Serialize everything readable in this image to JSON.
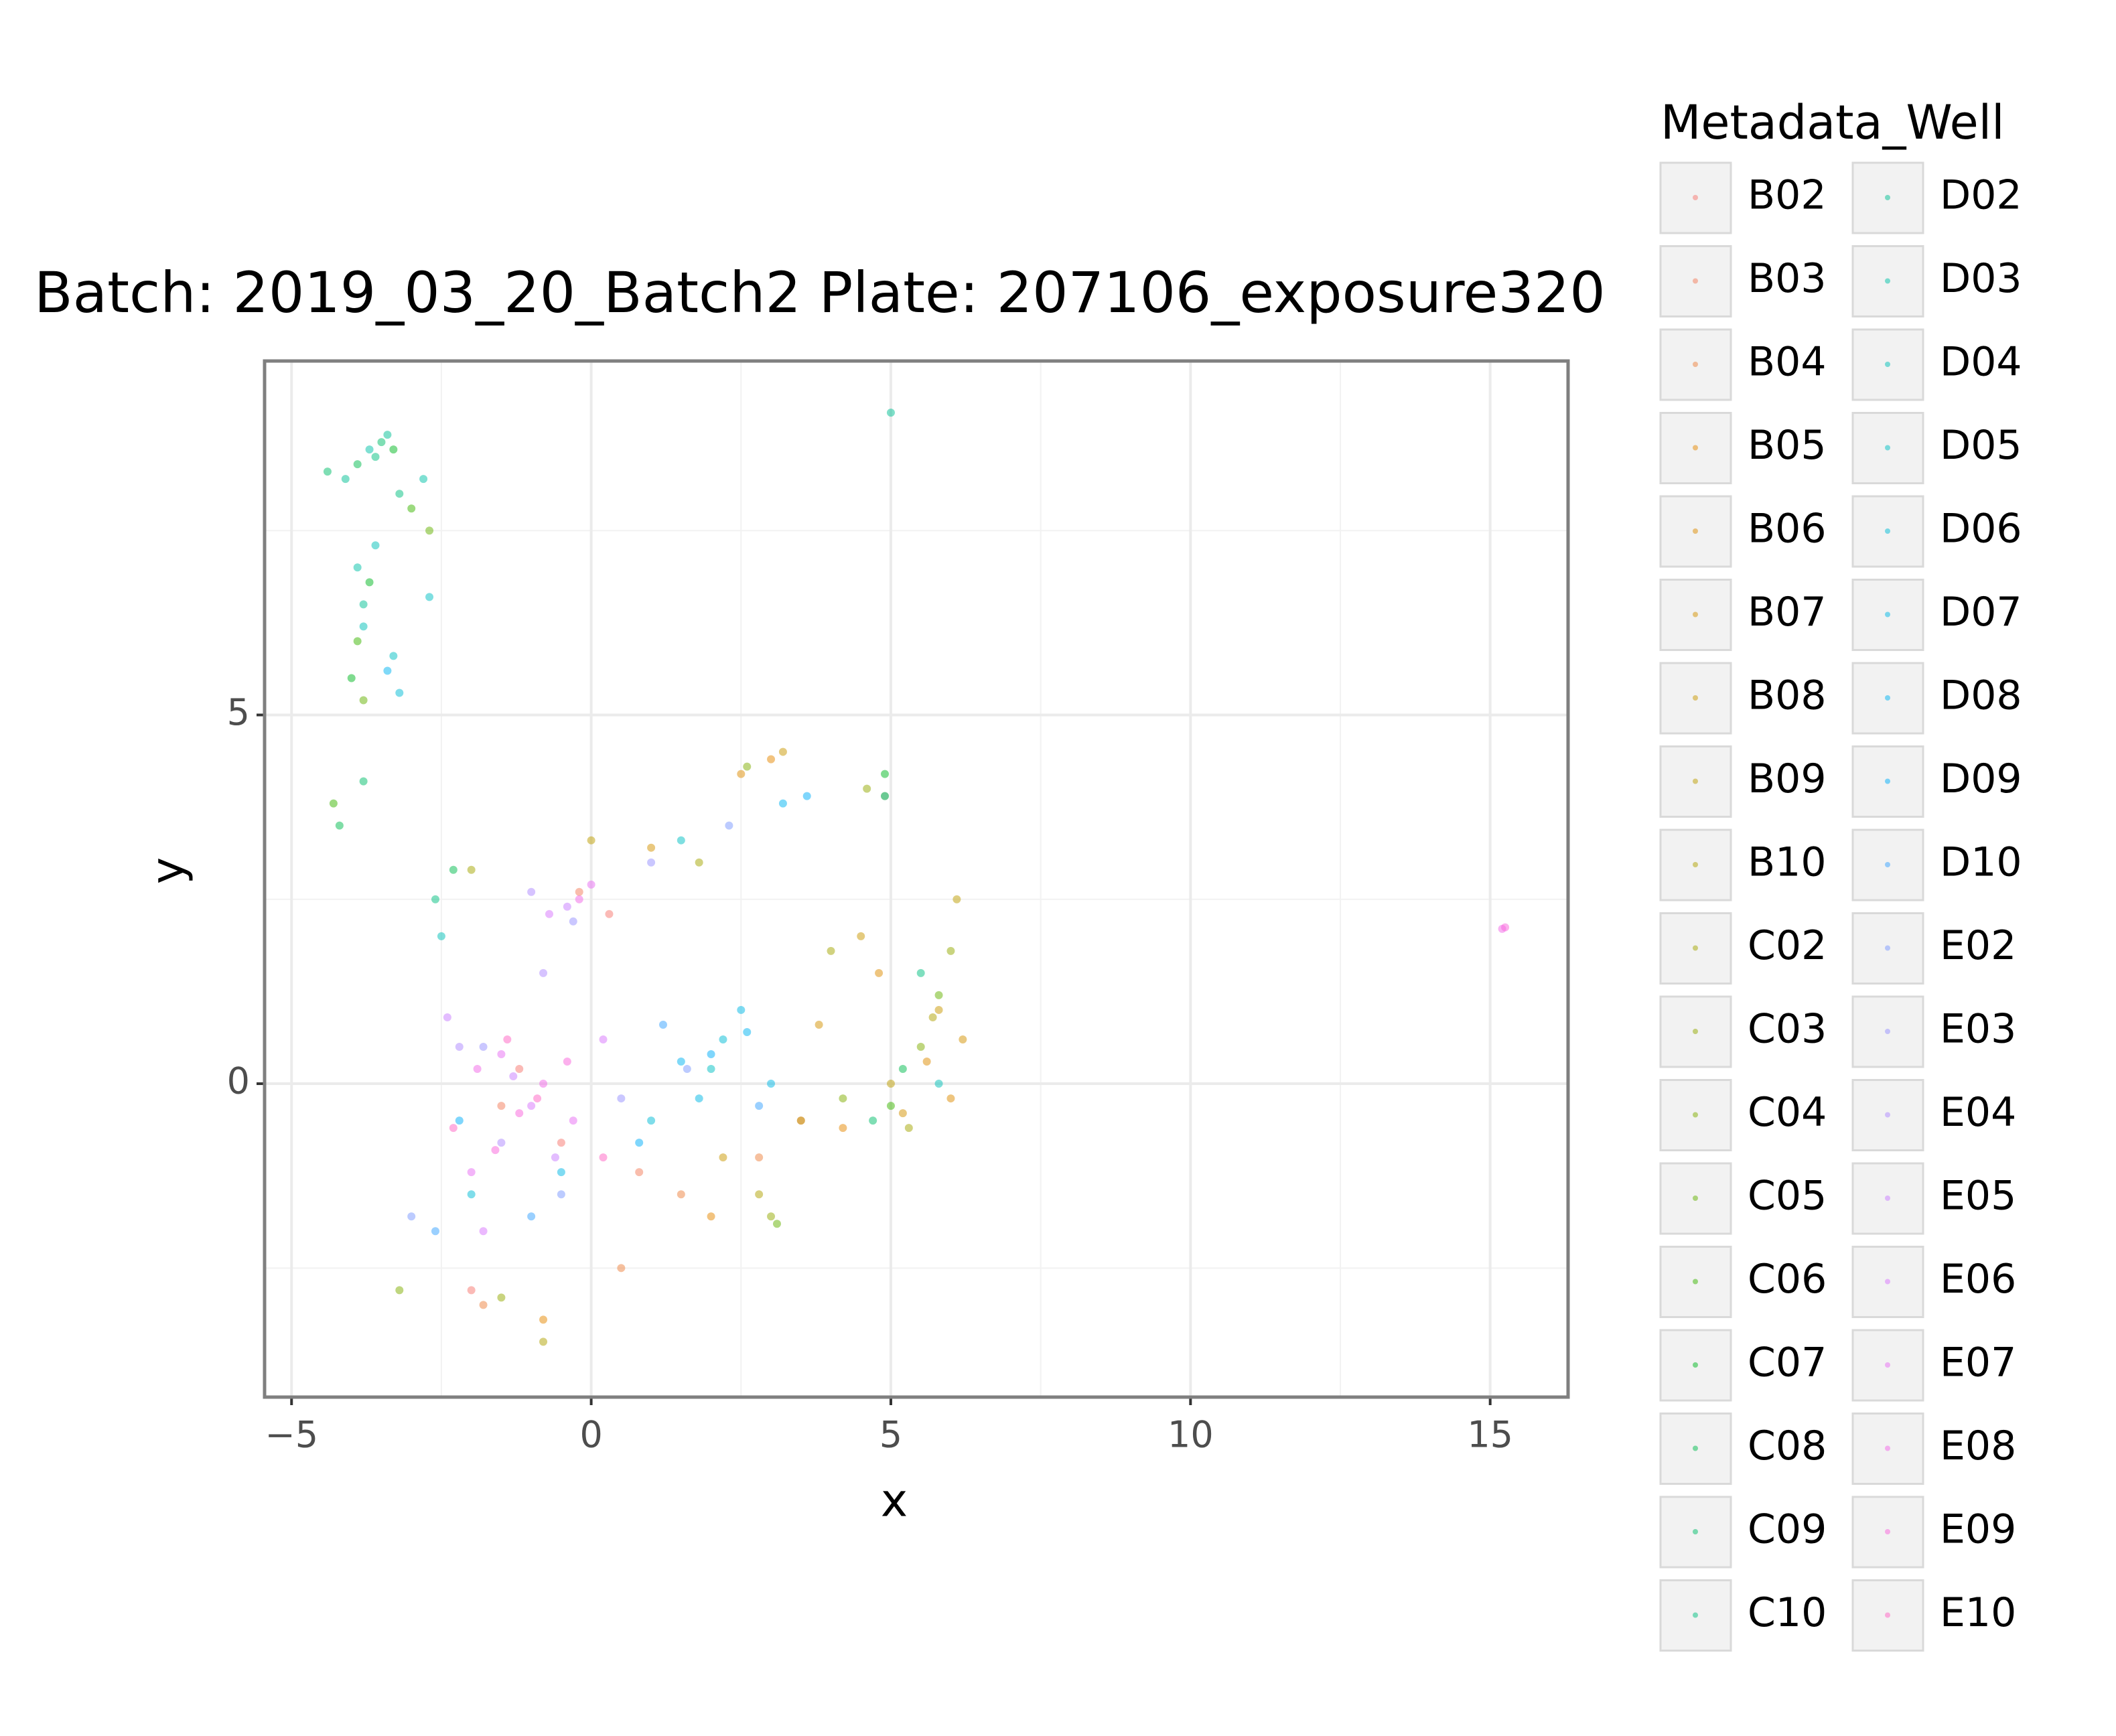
{
  "chart_data": {
    "type": "scatter",
    "title": "Batch: 2019_03_20_Batch2 Plate: 207106_exposure320",
    "x_label": "x",
    "y_label": "y",
    "legend_title": "Metadata_Well",
    "xlim": [
      -5.45,
      16.3
    ],
    "ylim": [
      -4.25,
      9.8
    ],
    "xticks": [
      {
        "value": -5,
        "label": "−5"
      },
      0,
      5,
      10,
      15
    ],
    "yticks": [
      0,
      5
    ],
    "grid": true,
    "legend": "right",
    "series": [
      {
        "name": "B02",
        "color": "#F8766D",
        "x": [
          -1.2,
          -0.5,
          0.3,
          -2.0
        ],
        "values": [
          0.2,
          -0.8,
          2.3,
          -2.8
        ]
      },
      {
        "name": "B03",
        "color": "#F37B59",
        "x": [
          -1.5,
          0.8,
          -0.2,
          3.5
        ],
        "values": [
          -0.3,
          -1.2,
          2.6,
          -0.5
        ]
      },
      {
        "name": "B04",
        "color": "#ED813E",
        "x": [
          0.5,
          -1.8,
          1.5,
          2.8
        ],
        "values": [
          -2.5,
          -3.0,
          -1.5,
          -1.0
        ]
      },
      {
        "name": "B05",
        "color": "#E58700",
        "x": [
          2.0,
          4.2,
          -0.8,
          3.0
        ],
        "values": [
          -1.8,
          -0.6,
          -3.2,
          4.4
        ]
      },
      {
        "name": "B06",
        "color": "#DE8C00",
        "x": [
          5.6,
          4.8,
          2.5,
          6.0
        ],
        "values": [
          0.3,
          1.5,
          4.2,
          -0.2
        ]
      },
      {
        "name": "B07",
        "color": "#D39200",
        "x": [
          5.2,
          3.8,
          6.2,
          1.0
        ],
        "values": [
          -0.4,
          0.8,
          0.6,
          3.2
        ]
      },
      {
        "name": "B08",
        "color": "#C99800",
        "x": [
          4.5,
          5.8,
          3.2,
          2.2
        ],
        "values": [
          2.0,
          1.0,
          4.5,
          -1.0
        ]
      },
      {
        "name": "B09",
        "color": "#BD9D00",
        "x": [
          5.0,
          3.5,
          6.1,
          0.0
        ],
        "values": [
          0.0,
          -0.5,
          2.5,
          3.3
        ]
      },
      {
        "name": "B10",
        "color": "#B0A100",
        "x": [
          4.9,
          5.7,
          2.8,
          -0.8
        ],
        "values": [
          3.9,
          0.9,
          -1.5,
          -3.5
        ]
      },
      {
        "name": "C02",
        "color": "#A3A500",
        "x": [
          5.3,
          4.0,
          1.8,
          -2.0
        ],
        "values": [
          -0.6,
          1.8,
          3.0,
          2.9
        ]
      },
      {
        "name": "C03",
        "color": "#93AA00",
        "x": [
          6.0,
          3.0,
          4.6,
          -1.5
        ],
        "values": [
          1.8,
          -1.8,
          4.0,
          -2.9
        ]
      },
      {
        "name": "C04",
        "color": "#7FAE00",
        "x": [
          5.5,
          2.6,
          4.2,
          -3.2
        ],
        "values": [
          0.5,
          4.3,
          -0.2,
          -2.8
        ]
      },
      {
        "name": "C05",
        "color": "#64B200",
        "x": [
          5.8,
          3.1,
          -3.8,
          -2.7
        ],
        "values": [
          1.2,
          -1.9,
          5.2,
          7.5
        ]
      },
      {
        "name": "C06",
        "color": "#39B600",
        "x": [
          5.0,
          -3.9,
          -3.0,
          -4.3
        ],
        "values": [
          -0.3,
          6.0,
          7.8,
          3.8
        ]
      },
      {
        "name": "C07",
        "color": "#00B81F",
        "x": [
          -3.7,
          -4.0,
          -3.3,
          4.9
        ],
        "values": [
          6.8,
          5.5,
          8.6,
          4.2
        ]
      },
      {
        "name": "C08",
        "color": "#00BB4E",
        "x": [
          -3.9,
          -4.2,
          -2.3,
          5.2
        ],
        "values": [
          8.4,
          3.5,
          2.9,
          0.2
        ]
      },
      {
        "name": "C09",
        "color": "#00BD6A",
        "x": [
          -3.5,
          -4.4,
          -3.8,
          4.7
        ],
        "values": [
          8.7,
          8.3,
          4.1,
          -0.5
        ]
      },
      {
        "name": "C10",
        "color": "#00BF80",
        "x": [
          -3.6,
          -3.2,
          -2.6,
          5.5
        ],
        "values": [
          8.5,
          8.0,
          2.5,
          1.5
        ]
      },
      {
        "name": "D02",
        "color": "#00C094",
        "x": [
          -4.1,
          -3.4,
          5.0,
          -3.8
        ],
        "values": [
          8.2,
          8.8,
          9.1,
          6.5
        ]
      },
      {
        "name": "D03",
        "color": "#00C1A7",
        "x": [
          -3.7,
          -3.9,
          -2.8,
          4.9
        ],
        "values": [
          8.6,
          7.0,
          8.2,
          3.9
        ]
      },
      {
        "name": "D04",
        "color": "#00C0B8",
        "x": [
          -3.8,
          -3.6,
          5.8,
          -2.5
        ],
        "values": [
          6.2,
          7.3,
          0.0,
          2.0
        ]
      },
      {
        "name": "D05",
        "color": "#00BFC4",
        "x": [
          -3.3,
          -2.7,
          1.5,
          2.0
        ],
        "values": [
          5.8,
          6.6,
          3.3,
          0.2
        ]
      },
      {
        "name": "D06",
        "color": "#00BCD6",
        "x": [
          -3.2,
          2.2,
          1.0,
          -2.0
        ],
        "values": [
          5.3,
          0.6,
          -0.5,
          -1.5
        ]
      },
      {
        "name": "D07",
        "color": "#00B8E5",
        "x": [
          2.5,
          1.8,
          3.0,
          -0.5
        ],
        "values": [
          1.0,
          -0.2,
          0.0,
          -1.2
        ]
      },
      {
        "name": "D08",
        "color": "#00B3F2",
        "x": [
          2.6,
          3.2,
          -3.4,
          1.5
        ],
        "values": [
          0.7,
          3.8,
          5.6,
          0.3
        ]
      },
      {
        "name": "D09",
        "color": "#00ADFA",
        "x": [
          2.0,
          0.8,
          -2.2,
          3.6
        ],
        "values": [
          0.4,
          -0.8,
          -0.5,
          3.9
        ]
      },
      {
        "name": "D10",
        "color": "#35A2FF",
        "x": [
          2.8,
          1.2,
          -1.0,
          -2.6
        ],
        "values": [
          -0.3,
          0.8,
          -1.8,
          -2.0
        ]
      },
      {
        "name": "E02",
        "color": "#7997FF",
        "x": [
          1.6,
          -0.5,
          2.3,
          -3.0
        ],
        "values": [
          0.2,
          -1.5,
          3.5,
          -1.8
        ]
      },
      {
        "name": "E03",
        "color": "#9590FF",
        "x": [
          0.5,
          -1.8,
          1.0,
          -0.3
        ],
        "values": [
          -0.2,
          0.5,
          3.0,
          2.2
        ]
      },
      {
        "name": "E04",
        "color": "#AE87FF",
        "x": [
          -2.2,
          -0.8,
          -1.5,
          -1.0
        ],
        "values": [
          0.5,
          1.5,
          -0.8,
          2.6
        ]
      },
      {
        "name": "E05",
        "color": "#C77CFF",
        "x": [
          -1.3,
          -0.6,
          -2.4,
          -0.4
        ],
        "values": [
          0.1,
          -1.0,
          0.9,
          2.4
        ]
      },
      {
        "name": "E06",
        "color": "#D774FD",
        "x": [
          -1.0,
          0.2,
          -1.8,
          -0.7
        ],
        "values": [
          -0.3,
          0.6,
          -2.0,
          2.3
        ]
      },
      {
        "name": "E07",
        "color": "#E76BF3",
        "x": [
          -1.5,
          -0.3,
          -2.0,
          0.0
        ],
        "values": [
          0.4,
          -0.5,
          -1.2,
          2.7
        ]
      },
      {
        "name": "E08",
        "color": "#F265E7",
        "x": [
          -0.8,
          15.2,
          -1.9,
          -0.2
        ],
        "values": [
          0.0,
          2.1,
          0.2,
          2.5
        ]
      },
      {
        "name": "E09",
        "color": "#FA62DB",
        "x": [
          -1.2,
          -0.4,
          15.25,
          -1.6
        ],
        "values": [
          -0.4,
          0.3,
          2.12,
          -0.9
        ]
      },
      {
        "name": "E10",
        "color": "#FF61C3",
        "x": [
          -1.4,
          -0.9,
          -2.3,
          0.2
        ],
        "values": [
          0.6,
          -0.2,
          -0.6,
          -1.0
        ]
      }
    ]
  }
}
